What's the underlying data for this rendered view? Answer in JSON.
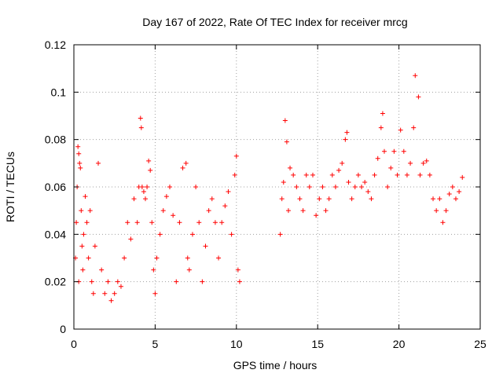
{
  "chart_data": {
    "type": "scatter",
    "title": "Day 167 of 2022, Rate Of TEC Index for receiver mrcg",
    "xlabel": "GPS time / hours",
    "ylabel": "ROTI / TECUs",
    "xlim": [
      0,
      25
    ],
    "ylim": [
      0,
      0.12
    ],
    "xticks": [
      0,
      5,
      10,
      15,
      20,
      25
    ],
    "xtick_labels": [
      "0",
      "5",
      "10",
      "15",
      "20",
      "25"
    ],
    "yticks": [
      0,
      0.02,
      0.04,
      0.06,
      0.08,
      0.1,
      0.12
    ],
    "ytick_labels": [
      "0",
      "0.02",
      "0.04",
      "0.06",
      "0.08",
      "0.1",
      "0.12"
    ],
    "grid": true,
    "marker": "plus",
    "color": "#ff0000",
    "series": [
      {
        "x": [
          0.1,
          0.15,
          0.2,
          0.25,
          0.3,
          0.3,
          0.35,
          0.4,
          0.45,
          0.5,
          0.55,
          0.6,
          0.7,
          0.8,
          0.9,
          1.0,
          1.1,
          1.2,
          1.3,
          1.5,
          1.7,
          1.9,
          2.1,
          2.3,
          2.5,
          2.7,
          2.9,
          3.1,
          3.3,
          3.5,
          3.7,
          3.9,
          4.0,
          4.1,
          4.15,
          4.2,
          4.3,
          4.4,
          4.5,
          4.6,
          4.7,
          4.8,
          4.9,
          5.0,
          5.1,
          5.3,
          5.5,
          5.7,
          5.9,
          6.1,
          6.3,
          6.5,
          6.7,
          6.9,
          7.0,
          7.1,
          7.3,
          7.5,
          7.7,
          7.9,
          8.1,
          8.3,
          8.5,
          8.7,
          8.9,
          9.1,
          9.3,
          9.5,
          9.7,
          9.9,
          10.0,
          10.1,
          10.2,
          12.7,
          12.8,
          12.9,
          13.0,
          13.1,
          13.2,
          13.3,
          13.5,
          13.7,
          13.9,
          14.1,
          14.3,
          14.5,
          14.7,
          14.9,
          15.1,
          15.3,
          15.5,
          15.7,
          15.9,
          16.1,
          16.3,
          16.5,
          16.7,
          16.8,
          16.9,
          17.1,
          17.3,
          17.5,
          17.7,
          17.9,
          18.1,
          18.3,
          18.5,
          18.7,
          18.9,
          19.0,
          19.1,
          19.3,
          19.5,
          19.7,
          19.9,
          20.1,
          20.3,
          20.5,
          20.7,
          20.9,
          21.0,
          21.2,
          21.3,
          21.5,
          21.7,
          21.9,
          22.1,
          22.3,
          22.5,
          22.7,
          22.9,
          23.1,
          23.3,
          23.5,
          23.7,
          23.9
        ],
        "y": [
          0.03,
          0.045,
          0.06,
          0.077,
          0.074,
          0.02,
          0.07,
          0.068,
          0.05,
          0.035,
          0.025,
          0.04,
          0.056,
          0.045,
          0.03,
          0.05,
          0.02,
          0.015,
          0.035,
          0.07,
          0.025,
          0.015,
          0.02,
          0.012,
          0.015,
          0.02,
          0.018,
          0.03,
          0.045,
          0.038,
          0.055,
          0.045,
          0.06,
          0.089,
          0.085,
          0.06,
          0.058,
          0.055,
          0.06,
          0.071,
          0.067,
          0.045,
          0.025,
          0.015,
          0.03,
          0.04,
          0.05,
          0.056,
          0.06,
          0.048,
          0.02,
          0.045,
          0.068,
          0.07,
          0.03,
          0.025,
          0.04,
          0.06,
          0.045,
          0.02,
          0.035,
          0.05,
          0.055,
          0.045,
          0.03,
          0.045,
          0.052,
          0.058,
          0.04,
          0.065,
          0.073,
          0.025,
          0.02,
          0.04,
          0.055,
          0.062,
          0.088,
          0.079,
          0.05,
          0.068,
          0.065,
          0.06,
          0.055,
          0.05,
          0.065,
          0.06,
          0.065,
          0.048,
          0.055,
          0.06,
          0.05,
          0.055,
          0.065,
          0.06,
          0.067,
          0.07,
          0.08,
          0.083,
          0.062,
          0.055,
          0.06,
          0.065,
          0.06,
          0.062,
          0.058,
          0.055,
          0.065,
          0.072,
          0.085,
          0.091,
          0.075,
          0.06,
          0.068,
          0.075,
          0.065,
          0.084,
          0.075,
          0.065,
          0.07,
          0.085,
          0.107,
          0.098,
          0.065,
          0.07,
          0.071,
          0.065,
          0.055,
          0.05,
          0.055,
          0.045,
          0.05,
          0.057,
          0.06,
          0.055,
          0.058,
          0.064
        ]
      }
    ]
  }
}
